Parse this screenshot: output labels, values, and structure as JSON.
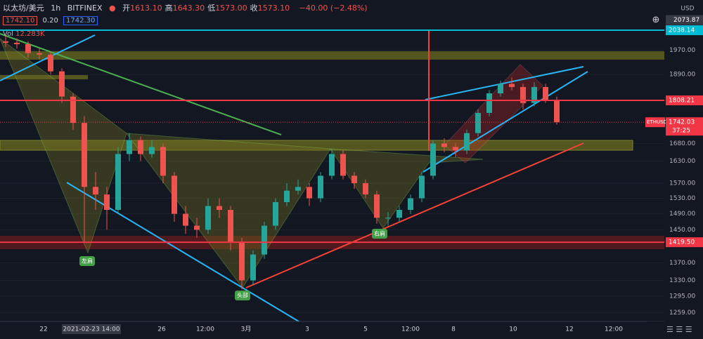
{
  "header": {
    "symbol": "以太坊/美元",
    "interval": "1h",
    "exchange": "BITFINEX",
    "ohlc": [
      {
        "label": "开",
        "value": "1613.10"
      },
      {
        "label": "高",
        "value": "1643.30"
      },
      {
        "label": "低",
        "value": "1573.00"
      },
      {
        "label": "收",
        "value": "1573.10"
      }
    ],
    "change": "−40.00 (−2.48%)"
  },
  "order": {
    "sell": "1742.10",
    "spread": "0.20",
    "buy": "1742.30"
  },
  "volume": {
    "label": "Vol",
    "value": "12.283K"
  },
  "chart_data": {
    "type": "candlestick",
    "log_scale": true,
    "grid": true,
    "y_unit": "USD",
    "up_color": "#26a69a",
    "down_color": "#ef5350",
    "open": [
      2000,
      1995,
      1990,
      1960,
      1955,
      1900,
      1820,
      1740,
      1560,
      1540,
      1500,
      1650,
      1690,
      1650,
      1670,
      1590,
      1490,
      1460,
      1450,
      1510,
      1500,
      1420,
      1330,
      1390,
      1460,
      1520,
      1550,
      1560,
      1530,
      1590,
      1650,
      1590,
      1570,
      1540,
      1480,
      1480,
      1500,
      1530,
      1590,
      1680,
      1670,
      1660,
      1710,
      1770,
      1830,
      1860,
      1850,
      1800,
      1850,
      1810
    ],
    "high": [
      2020,
      2010,
      2000,
      1975,
      1965,
      1910,
      1830,
      1760,
      1600,
      1560,
      1670,
      1710,
      1700,
      1690,
      1680,
      1600,
      1510,
      1480,
      1530,
      1530,
      1510,
      1430,
      1400,
      1470,
      1530,
      1570,
      1580,
      1570,
      1600,
      1665,
      1660,
      1600,
      1580,
      1550,
      1495,
      1510,
      1540,
      1600,
      1690,
      1695,
      1680,
      1720,
      1780,
      1840,
      1870,
      1880,
      1860,
      1865,
      1860,
      1820
    ],
    "low": [
      1980,
      1975,
      1945,
      1940,
      1890,
      1800,
      1720,
      1420,
      1500,
      1450,
      1490,
      1630,
      1630,
      1640,
      1570,
      1470,
      1440,
      1430,
      1440,
      1480,
      1400,
      1310,
      1320,
      1380,
      1450,
      1510,
      1540,
      1510,
      1520,
      1580,
      1580,
      1555,
      1530,
      1465,
      1460,
      1470,
      1490,
      1520,
      1580,
      1655,
      1640,
      1650,
      1700,
      1760,
      1820,
      1840,
      1780,
      1790,
      1800,
      1735
    ],
    "close": [
      1995,
      1990,
      1960,
      1955,
      1900,
      1820,
      1740,
      1560,
      1540,
      1500,
      1650,
      1690,
      1650,
      1670,
      1590,
      1490,
      1460,
      1450,
      1510,
      1500,
      1420,
      1330,
      1390,
      1460,
      1520,
      1550,
      1560,
      1530,
      1590,
      1650,
      1590,
      1570,
      1540,
      1480,
      1480,
      1500,
      1530,
      1590,
      1680,
      1670,
      1660,
      1710,
      1770,
      1830,
      1860,
      1850,
      1800,
      1850,
      1810,
      1742
    ],
    "ylim": [
      1240,
      2146
    ],
    "yticks": [
      {
        "value": 1970,
        "label": "1970.00"
      },
      {
        "value": 1890,
        "label": "1890.00"
      },
      {
        "value": 1680,
        "label": "1680.00"
      },
      {
        "value": 1630,
        "label": "1630.00"
      },
      {
        "value": 1570,
        "label": "1570.00"
      },
      {
        "value": 1530,
        "label": "1530.00"
      },
      {
        "value": 1490,
        "label": "1490.00"
      },
      {
        "value": 1450,
        "label": "1450.00"
      },
      {
        "value": 1370,
        "label": "1370.00"
      },
      {
        "value": 1330,
        "label": "1330.00"
      },
      {
        "value": 1295,
        "label": "1295.00"
      },
      {
        "value": 1259,
        "label": "1259.00"
      }
    ],
    "x_labels": [
      "22",
      "2021-02-23 14:00",
      "26",
      "12:00",
      "3月",
      "3",
      "5",
      "12:00",
      "8",
      "10",
      "12",
      "12:00"
    ],
    "crosshair": {
      "value": 2073.87,
      "label": "2073.87"
    },
    "levels": [
      {
        "value": 2038.14,
        "label": "2038.14",
        "color": "#00bcd4"
      },
      {
        "value": 1808.21,
        "label": "1808.21",
        "color": "#f23645"
      },
      {
        "value": 1419.5,
        "label": "1419.50",
        "color": "#f23645"
      }
    ],
    "current": {
      "symbol": "ETHUSD",
      "value": 1742.03,
      "label": "1742.03",
      "countdown": "37:25",
      "color": "#f23645"
    },
    "annotations": [
      "左肩",
      "头部",
      "右肩"
    ]
  }
}
